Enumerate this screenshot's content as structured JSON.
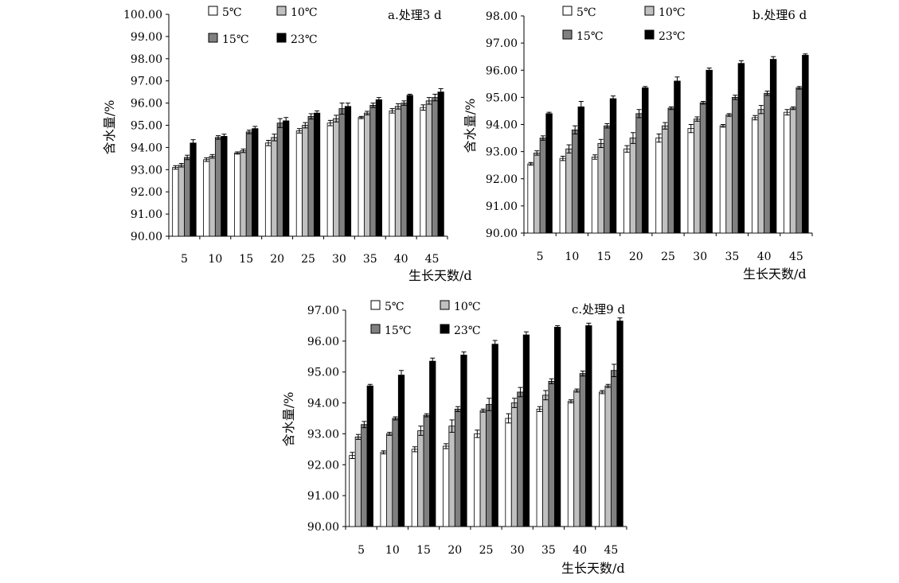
{
  "colors": {
    "5": "#ffffff",
    "10": "#c0c0c0",
    "15": "#808080",
    "23": "#000000",
    "stroke": "#000000"
  },
  "chart_data": [
    {
      "type": "bar",
      "title": "a.处理3 d",
      "xlabel": "生长天数/d",
      "ylabel": "含水量/%",
      "ylim": [
        90,
        100
      ],
      "yticks": [
        "90.00",
        "91.00",
        "92.00",
        "93.00",
        "94.00",
        "95.00",
        "96.00",
        "97.00",
        "98.00",
        "99.00",
        "100.00"
      ],
      "categories": [
        "5",
        "10",
        "15",
        "20",
        "25",
        "30",
        "35",
        "40",
        "45"
      ],
      "legend": [
        "5℃",
        "10℃",
        "15℃",
        "23℃"
      ],
      "series": [
        {
          "name": "5℃",
          "values": [
            93.1,
            93.45,
            93.75,
            94.2,
            94.75,
            95.1,
            95.35,
            95.65,
            95.8
          ],
          "errors": [
            0.08,
            0.08,
            0.05,
            0.12,
            0.1,
            0.12,
            0.05,
            0.1,
            0.12
          ]
        },
        {
          "name": "10℃",
          "values": [
            93.2,
            93.6,
            93.85,
            94.45,
            95.0,
            95.3,
            95.55,
            95.85,
            96.1
          ],
          "errors": [
            0.08,
            0.08,
            0.08,
            0.15,
            0.12,
            0.15,
            0.08,
            0.12,
            0.15
          ]
        },
        {
          "name": "15℃",
          "values": [
            93.55,
            94.45,
            94.7,
            95.1,
            95.4,
            95.75,
            95.9,
            96.0,
            96.25
          ],
          "errors": [
            0.1,
            0.08,
            0.08,
            0.2,
            0.12,
            0.25,
            0.1,
            0.1,
            0.15
          ]
        },
        {
          "name": "23℃",
          "values": [
            94.2,
            94.5,
            94.85,
            95.2,
            95.55,
            95.85,
            96.15,
            96.35,
            96.5
          ],
          "errors": [
            0.15,
            0.1,
            0.1,
            0.15,
            0.1,
            0.15,
            0.1,
            0.05,
            0.15
          ]
        }
      ]
    },
    {
      "type": "bar",
      "title": "b.处理6 d",
      "xlabel": "生长天数/d",
      "ylabel": "含水量/%",
      "ylim": [
        90,
        98
      ],
      "yticks": [
        "90.00",
        "91.00",
        "92.00",
        "93.00",
        "94.00",
        "95.00",
        "96.00",
        "97.00",
        "98.00"
      ],
      "categories": [
        "5",
        "10",
        "15",
        "20",
        "25",
        "30",
        "35",
        "40",
        "45"
      ],
      "legend": [
        "5℃",
        "10℃",
        "15℃",
        "23℃"
      ],
      "series": [
        {
          "name": "5℃",
          "values": [
            92.55,
            92.75,
            92.8,
            93.1,
            93.5,
            93.85,
            93.95,
            94.25,
            94.45
          ],
          "errors": [
            0.05,
            0.08,
            0.08,
            0.12,
            0.15,
            0.15,
            0.05,
            0.08,
            0.1
          ]
        },
        {
          "name": "10℃",
          "values": [
            92.95,
            93.1,
            93.3,
            93.5,
            93.95,
            94.2,
            94.35,
            94.55,
            94.6
          ],
          "errors": [
            0.08,
            0.15,
            0.15,
            0.2,
            0.12,
            0.08,
            0.05,
            0.15,
            0.05
          ]
        },
        {
          "name": "15℃",
          "values": [
            93.5,
            93.8,
            93.95,
            94.4,
            94.6,
            94.8,
            95.0,
            95.15,
            95.35
          ],
          "errors": [
            0.08,
            0.15,
            0.08,
            0.15,
            0.05,
            0.05,
            0.08,
            0.08,
            0.05
          ]
        },
        {
          "name": "23℃",
          "values": [
            94.4,
            94.65,
            94.95,
            95.35,
            95.6,
            96.0,
            96.25,
            96.4,
            96.55
          ],
          "errors": [
            0.05,
            0.2,
            0.1,
            0.05,
            0.15,
            0.08,
            0.1,
            0.1,
            0.05
          ]
        }
      ]
    },
    {
      "type": "bar",
      "title": "c.处理9 d",
      "xlabel": "生长天数/d",
      "ylabel": "含水量/%",
      "ylim": [
        90,
        97
      ],
      "yticks": [
        "90.00",
        "91.00",
        "92.00",
        "93.00",
        "94.00",
        "95.00",
        "96.00",
        "97.00"
      ],
      "categories": [
        "5",
        "10",
        "15",
        "20",
        "25",
        "30",
        "35",
        "40",
        "45"
      ],
      "legend": [
        "5℃",
        "10℃",
        "15℃",
        "23℃"
      ],
      "series": [
        {
          "name": "5℃",
          "values": [
            92.3,
            92.4,
            92.5,
            92.6,
            93.0,
            93.5,
            93.8,
            94.05,
            94.35
          ],
          "errors": [
            0.1,
            0.05,
            0.08,
            0.08,
            0.12,
            0.15,
            0.08,
            0.05,
            0.05
          ]
        },
        {
          "name": "10℃",
          "values": [
            92.9,
            93.0,
            93.1,
            93.25,
            93.75,
            94.0,
            94.25,
            94.4,
            94.55
          ],
          "errors": [
            0.08,
            0.05,
            0.15,
            0.2,
            0.05,
            0.15,
            0.15,
            0.05,
            0.05
          ]
        },
        {
          "name": "15℃",
          "values": [
            93.3,
            93.5,
            93.6,
            93.8,
            93.95,
            94.35,
            94.7,
            94.95,
            95.05
          ],
          "errors": [
            0.1,
            0.05,
            0.05,
            0.08,
            0.2,
            0.15,
            0.08,
            0.08,
            0.2
          ]
        },
        {
          "name": "23℃",
          "values": [
            94.55,
            94.9,
            95.35,
            95.55,
            95.9,
            96.2,
            96.45,
            96.5,
            96.65
          ],
          "errors": [
            0.05,
            0.15,
            0.1,
            0.1,
            0.12,
            0.1,
            0.05,
            0.08,
            0.1
          ]
        }
      ]
    }
  ]
}
